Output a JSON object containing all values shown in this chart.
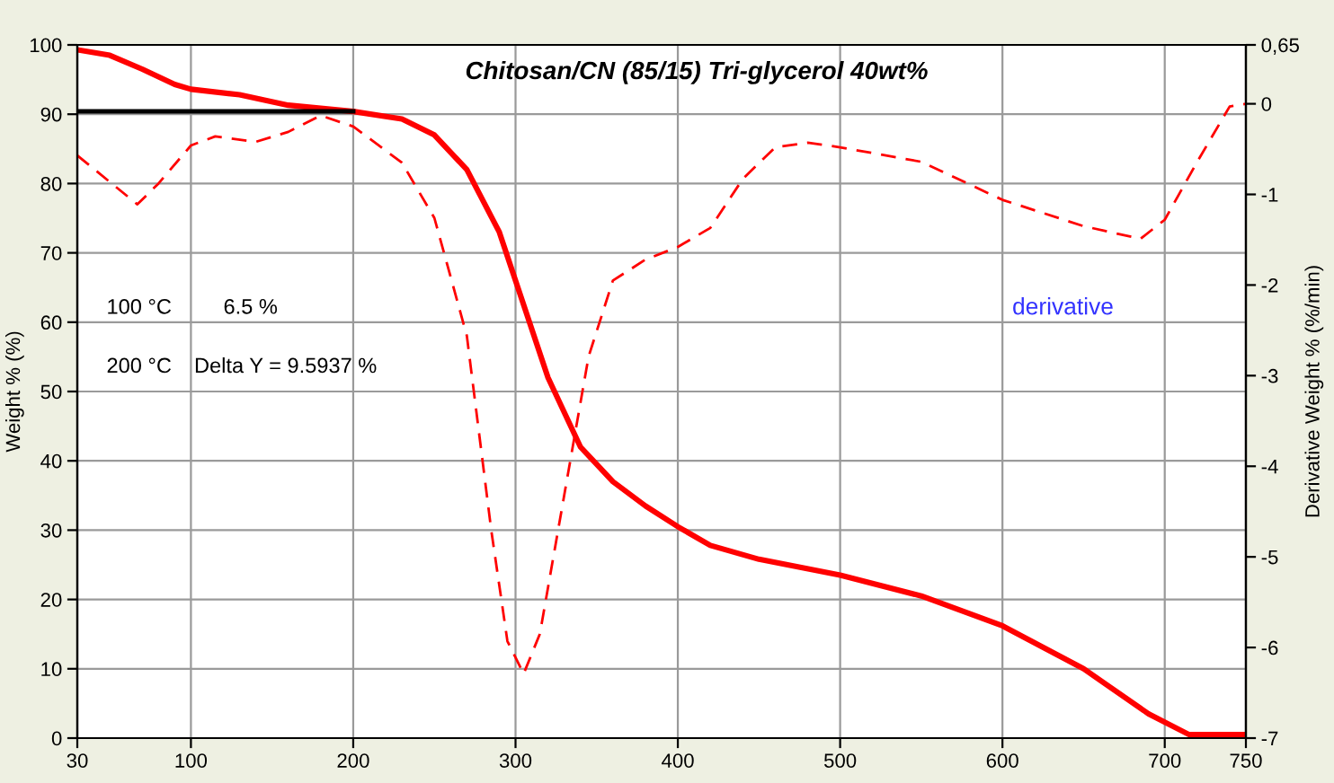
{
  "chart_data": {
    "type": "line",
    "title": "Chitosan/CN (85/15) Tri-glycerol 40wt%",
    "ylabel": "Weight % (%)",
    "y2label": "Derivative Weight % (%/min)",
    "annotations": [
      "100 °C",
      "6.5 %",
      "200 °C",
      "Delta Y = 9.5937 %",
      "derivative"
    ],
    "xlim": [
      30,
      750
    ],
    "xticks": [
      30,
      100,
      200,
      300,
      400,
      500,
      600,
      700,
      750
    ],
    "ylim": [
      0,
      100
    ],
    "yticks": [
      0,
      10,
      20,
      30,
      40,
      50,
      60,
      70,
      80,
      90,
      100
    ],
    "y2lim": [
      -7,
      0.65
    ],
    "y2ticks": [
      -7,
      -6,
      -5,
      -4,
      -3,
      -2,
      -1,
      0,
      {
        "value": 0.65,
        "label": "0,65"
      }
    ],
    "grid": true,
    "legend": false,
    "marker": "none",
    "series": [
      {
        "color": "#ff0000",
        "line_style": "solid",
        "x": [
          30,
          50,
          70,
          90,
          100,
          130,
          160,
          200,
          230,
          250,
          270,
          290,
          300,
          320,
          340,
          360,
          380,
          400,
          420,
          450,
          500,
          550,
          600,
          650,
          690,
          715,
          750
        ],
        "values": [
          99.3,
          98.5,
          96.5,
          94.3,
          93.6,
          92.8,
          91.3,
          90.4,
          89.3,
          87,
          82,
          73,
          66,
          52,
          42,
          37,
          33.5,
          30.5,
          27.8,
          25.8,
          23.5,
          20.5,
          16.2,
          10,
          3.5,
          0.5,
          0.5
        ]
      },
      {
        "color": "#ff0000",
        "line_style": "dashed",
        "axis": "y2",
        "x": [
          30,
          67,
          80,
          100,
          115,
          140,
          160,
          180,
          200,
          230,
          250,
          270,
          285,
          295,
          305,
          315,
          330,
          345,
          360,
          380,
          400,
          420,
          440,
          460,
          480,
          500,
          550,
          600,
          650,
          685,
          700,
          720,
          740,
          750
        ],
        "values": [
          -0.57,
          -1.11,
          -0.88,
          -0.46,
          -0.36,
          -0.42,
          -0.31,
          -0.13,
          -0.25,
          -0.65,
          -1.26,
          -2.56,
          -4.7,
          -5.93,
          -6.29,
          -5.85,
          -4.32,
          -2.79,
          -1.95,
          -1.72,
          -1.58,
          -1.37,
          -0.83,
          -0.48,
          -0.43,
          -0.48,
          -0.64,
          -1.06,
          -1.35,
          -1.49,
          -1.28,
          -0.64,
          -0.03,
          0
        ]
      },
      {
        "color": "#000000",
        "line_style": "solid",
        "x": [
          30,
          200
        ],
        "values": [
          90.4,
          90.4
        ]
      }
    ]
  }
}
